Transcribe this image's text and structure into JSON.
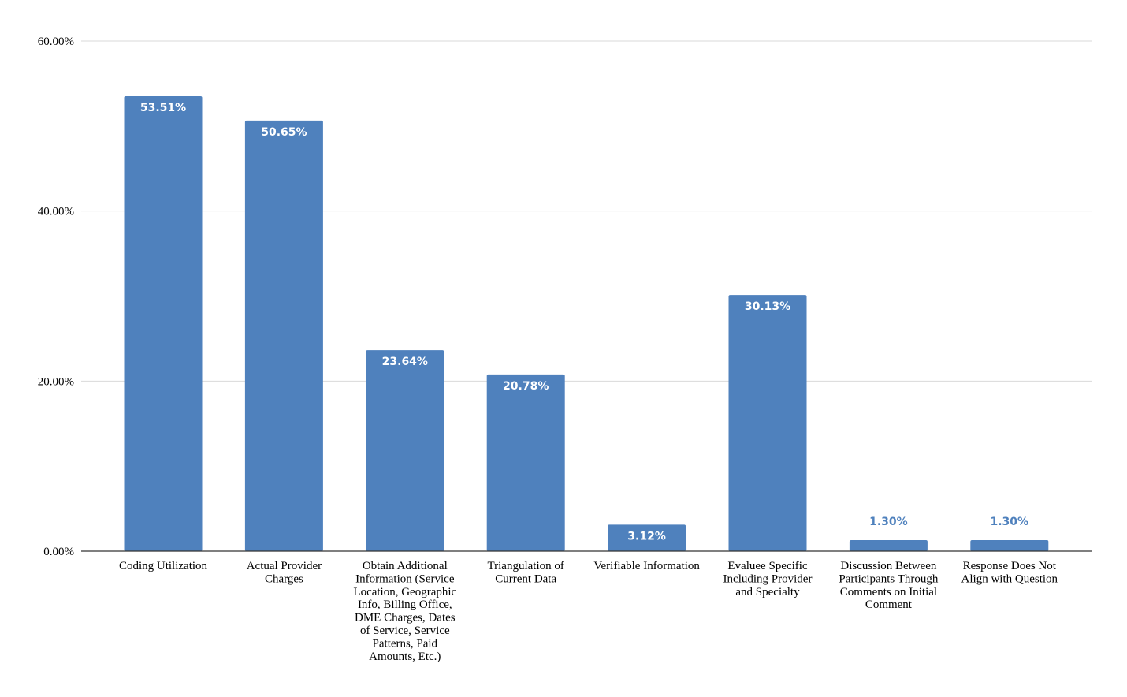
{
  "chart_data": {
    "type": "bar",
    "title": "",
    "xlabel": "",
    "ylabel": "",
    "ylim": [
      0,
      60
    ],
    "yticks": [
      "0.00%",
      "20.00%",
      "40.00%",
      "60.00%"
    ],
    "ytick_values": [
      0,
      20,
      40,
      60
    ],
    "grid": true,
    "legend": "none",
    "bar_color": "#4f81bd",
    "categories": [
      [
        "Coding Utilization"
      ],
      [
        "Actual Provider",
        "Charges"
      ],
      [
        "Obtain Additional",
        "Information (Service",
        "Location, Geographic",
        "Info, Billing Office,",
        "DME Charges, Dates",
        "of Service, Service",
        "Patterns, Paid",
        "Amounts, Etc.)"
      ],
      [
        "Triangulation of",
        "Current Data"
      ],
      [
        "Verifiable Information"
      ],
      [
        "Evaluee Specific",
        "Including Provider",
        "and Specialty"
      ],
      [
        "Discussion Between",
        "Participants Through",
        "Comments on Initial",
        "Comment"
      ],
      [
        "Response Does Not",
        "Align with Question"
      ]
    ],
    "values": [
      53.51,
      50.65,
      23.64,
      20.78,
      3.12,
      30.13,
      1.3,
      1.3
    ],
    "data_labels": [
      "53.51%",
      "50.65%",
      "23.64%",
      "20.78%",
      "3.12%",
      "30.13%",
      "1.30%",
      "1.30%"
    ]
  }
}
